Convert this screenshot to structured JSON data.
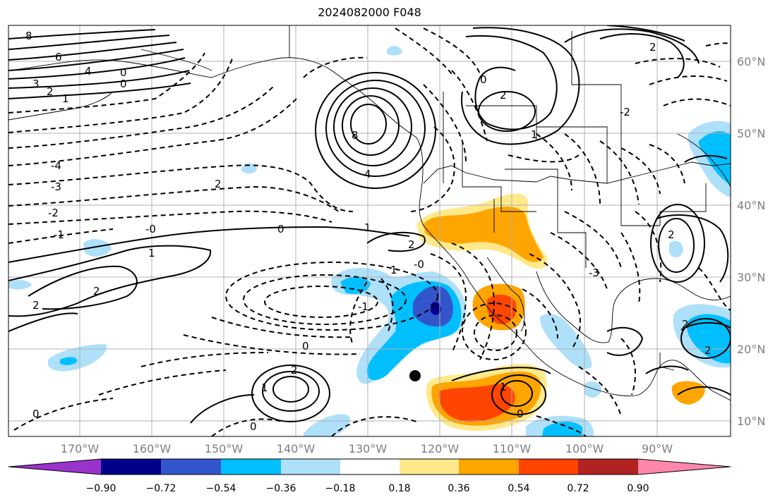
{
  "title": "2024082000 F048",
  "colors": {
    "lon_tick": "#7f7f7f",
    "lat_tick": "#7f7f7f",
    "contour": "#000000",
    "gridline": "#b0b0b0"
  },
  "longitude_ticks": [
    "170°W",
    "160°W",
    "150°W",
    "140°W",
    "130°W",
    "120°W",
    "110°W",
    "100°W",
    "90°W"
  ],
  "latitude_ticks": [
    "60°N",
    "50°N",
    "40°N",
    "30°N",
    "20°N",
    "10°N"
  ],
  "colorbar": {
    "colors": [
      "#9933cc",
      "#00008b",
      "#3355cc",
      "#00bfff",
      "#aee0fa",
      "#ffffff",
      "#ffe98a",
      "#ffa500",
      "#ff4500",
      "#b22222",
      "#ff88aa"
    ],
    "tick_labels": [
      "−0.90",
      "−0.72",
      "−0.54",
      "−0.36",
      "−0.18",
      "0.18",
      "0.36",
      "0.54",
      "0.72",
      "0.90"
    ]
  },
  "contour_labels": [
    {
      "text": "8"
    },
    {
      "text": "6"
    },
    {
      "text": "4"
    },
    {
      "text": "3"
    },
    {
      "text": "2"
    },
    {
      "text": "1"
    },
    {
      "text": "0"
    },
    {
      "text": "-4"
    },
    {
      "text": "-3"
    },
    {
      "text": "-2"
    },
    {
      "text": "-1"
    },
    {
      "text": "-0"
    },
    {
      "text": "0"
    },
    {
      "text": "1"
    },
    {
      "text": "2"
    },
    {
      "text": "2"
    },
    {
      "text": "2"
    },
    {
      "text": "0"
    },
    {
      "text": "8"
    },
    {
      "text": "4"
    },
    {
      "text": "2"
    },
    {
      "text": "1"
    },
    {
      "text": "-2"
    },
    {
      "text": "0"
    },
    {
      "text": "1"
    },
    {
      "text": "2"
    },
    {
      "text": "2"
    },
    {
      "text": "1"
    },
    {
      "text": "1"
    },
    {
      "text": "0"
    },
    {
      "text": "0"
    },
    {
      "text": "-3"
    },
    {
      "text": "0"
    },
    {
      "text": "2"
    },
    {
      "text": "2"
    },
    {
      "text": "0"
    },
    {
      "text": "-1"
    },
    {
      "text": "2"
    },
    {
      "text": "1"
    },
    {
      "text": "-0"
    },
    {
      "text": "2"
    }
  ]
}
